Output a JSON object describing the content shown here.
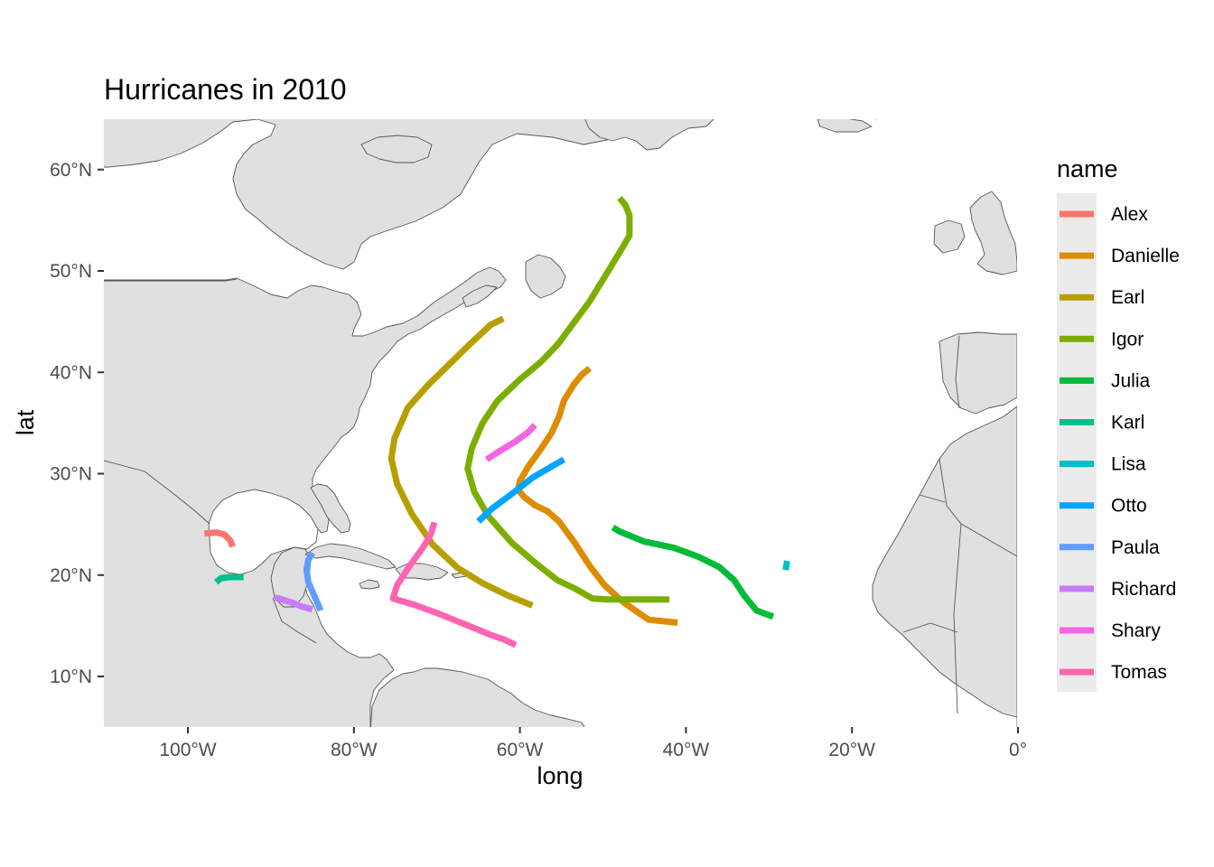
{
  "title": "Hurricanes in 2010",
  "colors": {
    "land": "#e0e0e0",
    "land_stroke": "#555555",
    "ocean": "#ffffff",
    "legend_key_bg": "#ebebeb"
  },
  "map": {
    "projection": "equirectangular",
    "xlim": [
      -110,
      0
    ],
    "ylim": [
      5,
      65
    ]
  },
  "chart_data": {
    "type": "map",
    "title": "Hurricanes in 2010",
    "xlabel": "long",
    "ylabel": "lat",
    "x_ticks": [
      {
        "value": -100,
        "label": "100°W"
      },
      {
        "value": -80,
        "label": "80°W"
      },
      {
        "value": -60,
        "label": "60°W"
      },
      {
        "value": -40,
        "label": "40°W"
      },
      {
        "value": -20,
        "label": "20°W"
      },
      {
        "value": 0,
        "label": "0°"
      }
    ],
    "y_ticks": [
      {
        "value": 10,
        "label": "10°N"
      },
      {
        "value": 20,
        "label": "20°N"
      },
      {
        "value": 30,
        "label": "30°N"
      },
      {
        "value": 40,
        "label": "40°N"
      },
      {
        "value": 50,
        "label": "50°N"
      },
      {
        "value": 60,
        "label": "60°N"
      }
    ],
    "grid": false,
    "legend": {
      "title": "name",
      "position": "right"
    },
    "series": [
      {
        "name": "Alex",
        "color": "#F8766D",
        "points": [
          [
            -98,
            24.1
          ],
          [
            -96.5,
            24.2
          ],
          [
            -95.6,
            24.0
          ],
          [
            -94.9,
            23.4
          ],
          [
            -94.6,
            22.8
          ]
        ]
      },
      {
        "name": "Danielle",
        "color": "#DE8C00",
        "points": [
          [
            -41,
            15.3
          ],
          [
            -44.5,
            15.6
          ],
          [
            -47.5,
            17.3
          ],
          [
            -49.8,
            19.0
          ],
          [
            -51.5,
            20.8
          ],
          [
            -53.5,
            23.3
          ],
          [
            -55.3,
            25.3
          ],
          [
            -56.7,
            26.3
          ],
          [
            -58.2,
            26.9
          ],
          [
            -59.5,
            27.7
          ],
          [
            -60.2,
            28.4
          ],
          [
            -60.0,
            29.3
          ],
          [
            -59.0,
            30.7
          ],
          [
            -57.5,
            32.4
          ],
          [
            -56.2,
            34.0
          ],
          [
            -55.3,
            35.6
          ],
          [
            -54.7,
            37.2
          ],
          [
            -53.5,
            38.8
          ],
          [
            -52.5,
            39.8
          ],
          [
            -51.6,
            40.4
          ]
        ]
      },
      {
        "name": "Earl",
        "color": "#B79F00",
        "points": [
          [
            -58.5,
            17.0
          ],
          [
            -61.5,
            18.0
          ],
          [
            -64.5,
            19.2
          ],
          [
            -67.5,
            20.7
          ],
          [
            -70.5,
            23.0
          ],
          [
            -73.0,
            26.0
          ],
          [
            -74.8,
            29.0
          ],
          [
            -75.5,
            31.5
          ],
          [
            -75.1,
            33.5
          ],
          [
            -73.5,
            36.5
          ],
          [
            -71.0,
            38.8
          ],
          [
            -68.5,
            40.8
          ],
          [
            -66.0,
            42.8
          ],
          [
            -63.5,
            44.7
          ],
          [
            -62.0,
            45.3
          ]
        ]
      },
      {
        "name": "Igor",
        "color": "#7CAE00",
        "points": [
          [
            -42,
            17.6
          ],
          [
            -46,
            17.6
          ],
          [
            -49.5,
            17.6
          ],
          [
            -51.3,
            17.7
          ],
          [
            -53.2,
            18.6
          ],
          [
            -55.5,
            19.5
          ],
          [
            -58.0,
            21.1
          ],
          [
            -61.0,
            23.2
          ],
          [
            -63.8,
            25.8
          ],
          [
            -65.5,
            28.2
          ],
          [
            -66.3,
            30.5
          ],
          [
            -65.8,
            32.5
          ],
          [
            -64.5,
            35.0
          ],
          [
            -62.7,
            37.2
          ],
          [
            -60.0,
            39.3
          ],
          [
            -57.5,
            41.0
          ],
          [
            -55.4,
            42.8
          ],
          [
            -53.5,
            44.9
          ],
          [
            -51.6,
            47.0
          ],
          [
            -49.5,
            49.8
          ],
          [
            -47.5,
            52.5
          ],
          [
            -46.8,
            53.5
          ],
          [
            -46.8,
            55.5
          ],
          [
            -47.3,
            56.5
          ],
          [
            -48.0,
            57.2
          ]
        ]
      },
      {
        "name": "Julia",
        "color": "#00BA38",
        "points": [
          [
            -29.5,
            15.9
          ],
          [
            -31.5,
            16.5
          ],
          [
            -33.0,
            18.0
          ],
          [
            -34.2,
            19.5
          ],
          [
            -36.0,
            20.8
          ],
          [
            -38.5,
            21.8
          ],
          [
            -41.5,
            22.7
          ],
          [
            -45.0,
            23.3
          ],
          [
            -48.0,
            24.3
          ],
          [
            -48.8,
            24.7
          ]
        ]
      },
      {
        "name": "Karl",
        "color": "#00C08B",
        "points": [
          [
            -96.6,
            19.3
          ],
          [
            -96,
            19.7
          ],
          [
            -95,
            19.8
          ],
          [
            -94.0,
            19.8
          ],
          [
            -93.3,
            19.8
          ]
        ]
      },
      {
        "name": "Lisa",
        "color": "#00BFC4",
        "points": [
          [
            -28.0,
            20.5
          ],
          [
            -27.8,
            21.4
          ]
        ]
      },
      {
        "name": "Otto",
        "color": "#00A5FF",
        "points": [
          [
            -65.0,
            25.3
          ],
          [
            -63.3,
            26.6
          ],
          [
            -61.0,
            28.0
          ],
          [
            -58.5,
            29.6
          ],
          [
            -56.0,
            30.8
          ],
          [
            -54.7,
            31.4
          ]
        ]
      },
      {
        "name": "Paula",
        "color": "#619CFF",
        "points": [
          [
            -84.0,
            16.5
          ],
          [
            -84.8,
            18.0
          ],
          [
            -85.5,
            19.3
          ],
          [
            -85.7,
            20.5
          ],
          [
            -85.5,
            21.5
          ],
          [
            -85.0,
            22.2
          ]
        ]
      },
      {
        "name": "Richard",
        "color": "#C77CFF",
        "points": [
          [
            -89.5,
            17.8
          ],
          [
            -87.5,
            17.3
          ],
          [
            -86.3,
            16.9
          ],
          [
            -85.0,
            16.6
          ]
        ]
      },
      {
        "name": "Shary",
        "color": "#F564E3",
        "points": [
          [
            -64.0,
            31.4
          ],
          [
            -62.5,
            32.2
          ],
          [
            -60.5,
            33.2
          ],
          [
            -59.0,
            34.1
          ],
          [
            -58.2,
            34.8
          ]
        ]
      },
      {
        "name": "Tomas",
        "color": "#FF64B0",
        "points": [
          [
            -60.5,
            13.1
          ],
          [
            -61.8,
            13.6
          ],
          [
            -63.5,
            14.1
          ],
          [
            -66.5,
            15.1
          ],
          [
            -69.5,
            16.1
          ],
          [
            -72.5,
            17.0
          ],
          [
            -75.3,
            17.7
          ],
          [
            -74.8,
            19.0
          ],
          [
            -73.2,
            21.0
          ],
          [
            -71.6,
            22.8
          ],
          [
            -70.7,
            24.1
          ],
          [
            -70.3,
            25.2
          ]
        ]
      }
    ]
  }
}
